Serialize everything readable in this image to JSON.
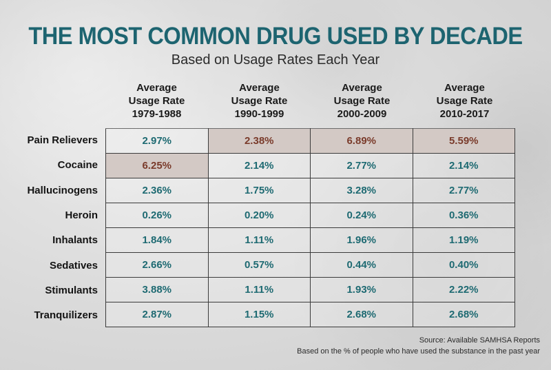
{
  "title": "THE MOST COMMON DRUG USED BY DECADE",
  "subtitle": "Based on Usage Rates Each Year",
  "columns": [
    {
      "line1": "Average",
      "line2": "Usage Rate",
      "line3": "1979-1988"
    },
    {
      "line1": "Average",
      "line2": "Usage Rate",
      "line3": "1990-1999"
    },
    {
      "line1": "Average",
      "line2": "Usage Rate",
      "line3": "2000-2009"
    },
    {
      "line1": "Average",
      "line2": "Usage Rate",
      "line3": "2010-2017"
    }
  ],
  "rows": [
    {
      "label": "Pain Relievers",
      "values": [
        "2.97%",
        "2.38%",
        "6.89%",
        "5.59%"
      ],
      "highlight": [
        false,
        true,
        true,
        true
      ]
    },
    {
      "label": "Cocaine",
      "values": [
        "6.25%",
        "2.14%",
        "2.77%",
        "2.14%"
      ],
      "highlight": [
        true,
        false,
        false,
        false
      ]
    },
    {
      "label": "Hallucinogens",
      "values": [
        "2.36%",
        "1.75%",
        "3.28%",
        "2.77%"
      ],
      "highlight": [
        false,
        false,
        false,
        false
      ]
    },
    {
      "label": "Heroin",
      "values": [
        "0.26%",
        "0.20%",
        "0.24%",
        "0.36%"
      ],
      "highlight": [
        false,
        false,
        false,
        false
      ]
    },
    {
      "label": "Inhalants",
      "values": [
        "1.84%",
        "1.11%",
        "1.96%",
        "1.19%"
      ],
      "highlight": [
        false,
        false,
        false,
        false
      ]
    },
    {
      "label": "Sedatives",
      "values": [
        "2.66%",
        "0.57%",
        "0.44%",
        "0.40%"
      ],
      "highlight": [
        false,
        false,
        false,
        false
      ]
    },
    {
      "label": "Stimulants",
      "values": [
        "3.88%",
        "1.11%",
        "1.93%",
        "2.22%"
      ],
      "highlight": [
        false,
        false,
        false,
        false
      ]
    },
    {
      "label": "Tranquilizers",
      "values": [
        "2.87%",
        "1.15%",
        "2.68%",
        "2.68%"
      ],
      "highlight": [
        false,
        false,
        false,
        false
      ]
    }
  ],
  "footer": {
    "source": "Source: Available SAMHSA Reports",
    "note": "Based on the % of people who have used the substance in the past year"
  },
  "colors": {
    "title": "#1d6470",
    "value_text": "#1e6a72",
    "highlight_fill": "#d3c9c5",
    "highlight_text": "#7a3b2b"
  },
  "chart_data": {
    "type": "table",
    "title": "THE MOST COMMON DRUG USED BY DECADE",
    "subtitle": "Based on Usage Rates Each Year",
    "columns": [
      "Average Usage Rate 1979-1988",
      "Average Usage Rate 1990-1999",
      "Average Usage Rate 2000-2009",
      "Average Usage Rate 2010-2017"
    ],
    "row_labels": [
      "Pain Relievers",
      "Cocaine",
      "Hallucinogens",
      "Heroin",
      "Inhalants",
      "Sedatives",
      "Stimulants",
      "Tranquilizers"
    ],
    "values": [
      [
        2.97,
        2.38,
        6.89,
        5.59
      ],
      [
        6.25,
        2.14,
        2.77,
        2.14
      ],
      [
        2.36,
        1.75,
        3.28,
        2.77
      ],
      [
        0.26,
        0.2,
        0.24,
        0.36
      ],
      [
        1.84,
        1.11,
        1.96,
        1.19
      ],
      [
        2.66,
        0.57,
        0.44,
        0.4
      ],
      [
        3.88,
        1.11,
        1.93,
        2.22
      ],
      [
        2.87,
        1.15,
        2.68,
        2.68
      ]
    ],
    "unit": "%",
    "highlighted_max_per_column": [
      "Cocaine",
      "Pain Relievers",
      "Pain Relievers",
      "Pain Relievers"
    ],
    "annotations": [
      "Source: Available SAMHSA Reports",
      "Based on the % of people who have used the substance in the past year"
    ]
  }
}
